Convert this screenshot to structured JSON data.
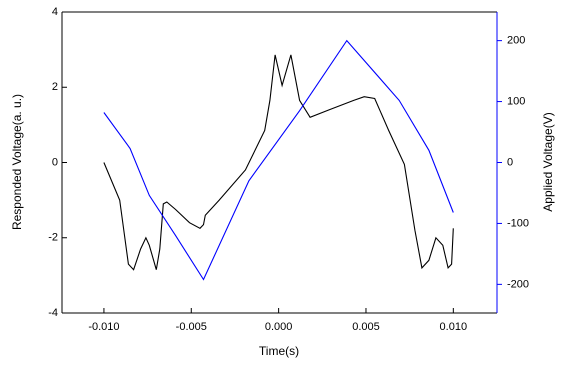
{
  "chart_data": {
    "type": "line",
    "x_label": "Time(s)",
    "y_label": "Responded Voltage(a. u.)",
    "y2_label": "Applied Voltage(V)",
    "xlim": [
      -0.0124,
      0.0125
    ],
    "xticks": [
      {
        "value": -0.01,
        "label": "-0.010"
      },
      -0.005,
      {
        "value": 0,
        "label": "0.000"
      },
      0.005,
      {
        "value": 0.01,
        "label": "0.010"
      }
    ],
    "ylim": [
      -4,
      4
    ],
    "yticks": [
      -4,
      -2,
      0,
      2,
      4
    ],
    "y2lim": [
      -247,
      247
    ],
    "y2ticks": [
      -200,
      -100,
      0,
      100,
      200
    ],
    "y2color": "#0000ff",
    "series": [
      {
        "color": "#000000",
        "axis": "y",
        "x": [
          -0.01,
          -0.0091,
          -0.0086,
          -0.0083,
          -0.0079,
          -0.0076,
          -0.0074,
          -0.007,
          -0.0068,
          -0.0066,
          -0.0064,
          -0.0059,
          -0.0051,
          -0.0045,
          -0.0043,
          -0.0042,
          -0.0034,
          -0.0019,
          -0.0008,
          -0.0005,
          -0.0002,
          0.0002,
          0.0007,
          0.0012,
          0.0018,
          0.0029,
          0.0043,
          0.0049,
          0.0055,
          0.0063,
          0.0072,
          0.0078,
          0.0082,
          0.0086,
          0.009,
          0.0094,
          0.0097,
          0.0099,
          0.01
        ],
        "values": [
          0,
          -1,
          -2.7,
          -2.85,
          -2.3,
          -2,
          -2.2,
          -2.85,
          -2.3,
          -1.1,
          -1.05,
          -1.25,
          -1.6,
          -1.75,
          -1.65,
          -1.4,
          -1,
          -0.2,
          0.85,
          1.65,
          2.86,
          2.05,
          2.86,
          1.65,
          1.2,
          1.4,
          1.65,
          1.75,
          1.7,
          0.85,
          -0.05,
          -1.8,
          -2.8,
          -2.6,
          -2,
          -2.2,
          -2.8,
          -2.7,
          -1.75
        ]
      },
      {
        "color": "#0000ff",
        "axis": "y2",
        "x": [
          -0.01,
          -0.0085,
          -0.0074,
          -0.0059,
          -0.0043,
          -0.0017,
          0.0012,
          0.0039,
          0.0069,
          0.0086,
          0.01
        ],
        "values": [
          82,
          23,
          -54,
          -120,
          -192,
          -30,
          85,
          200,
          102,
          20,
          -82
        ]
      }
    ]
  }
}
